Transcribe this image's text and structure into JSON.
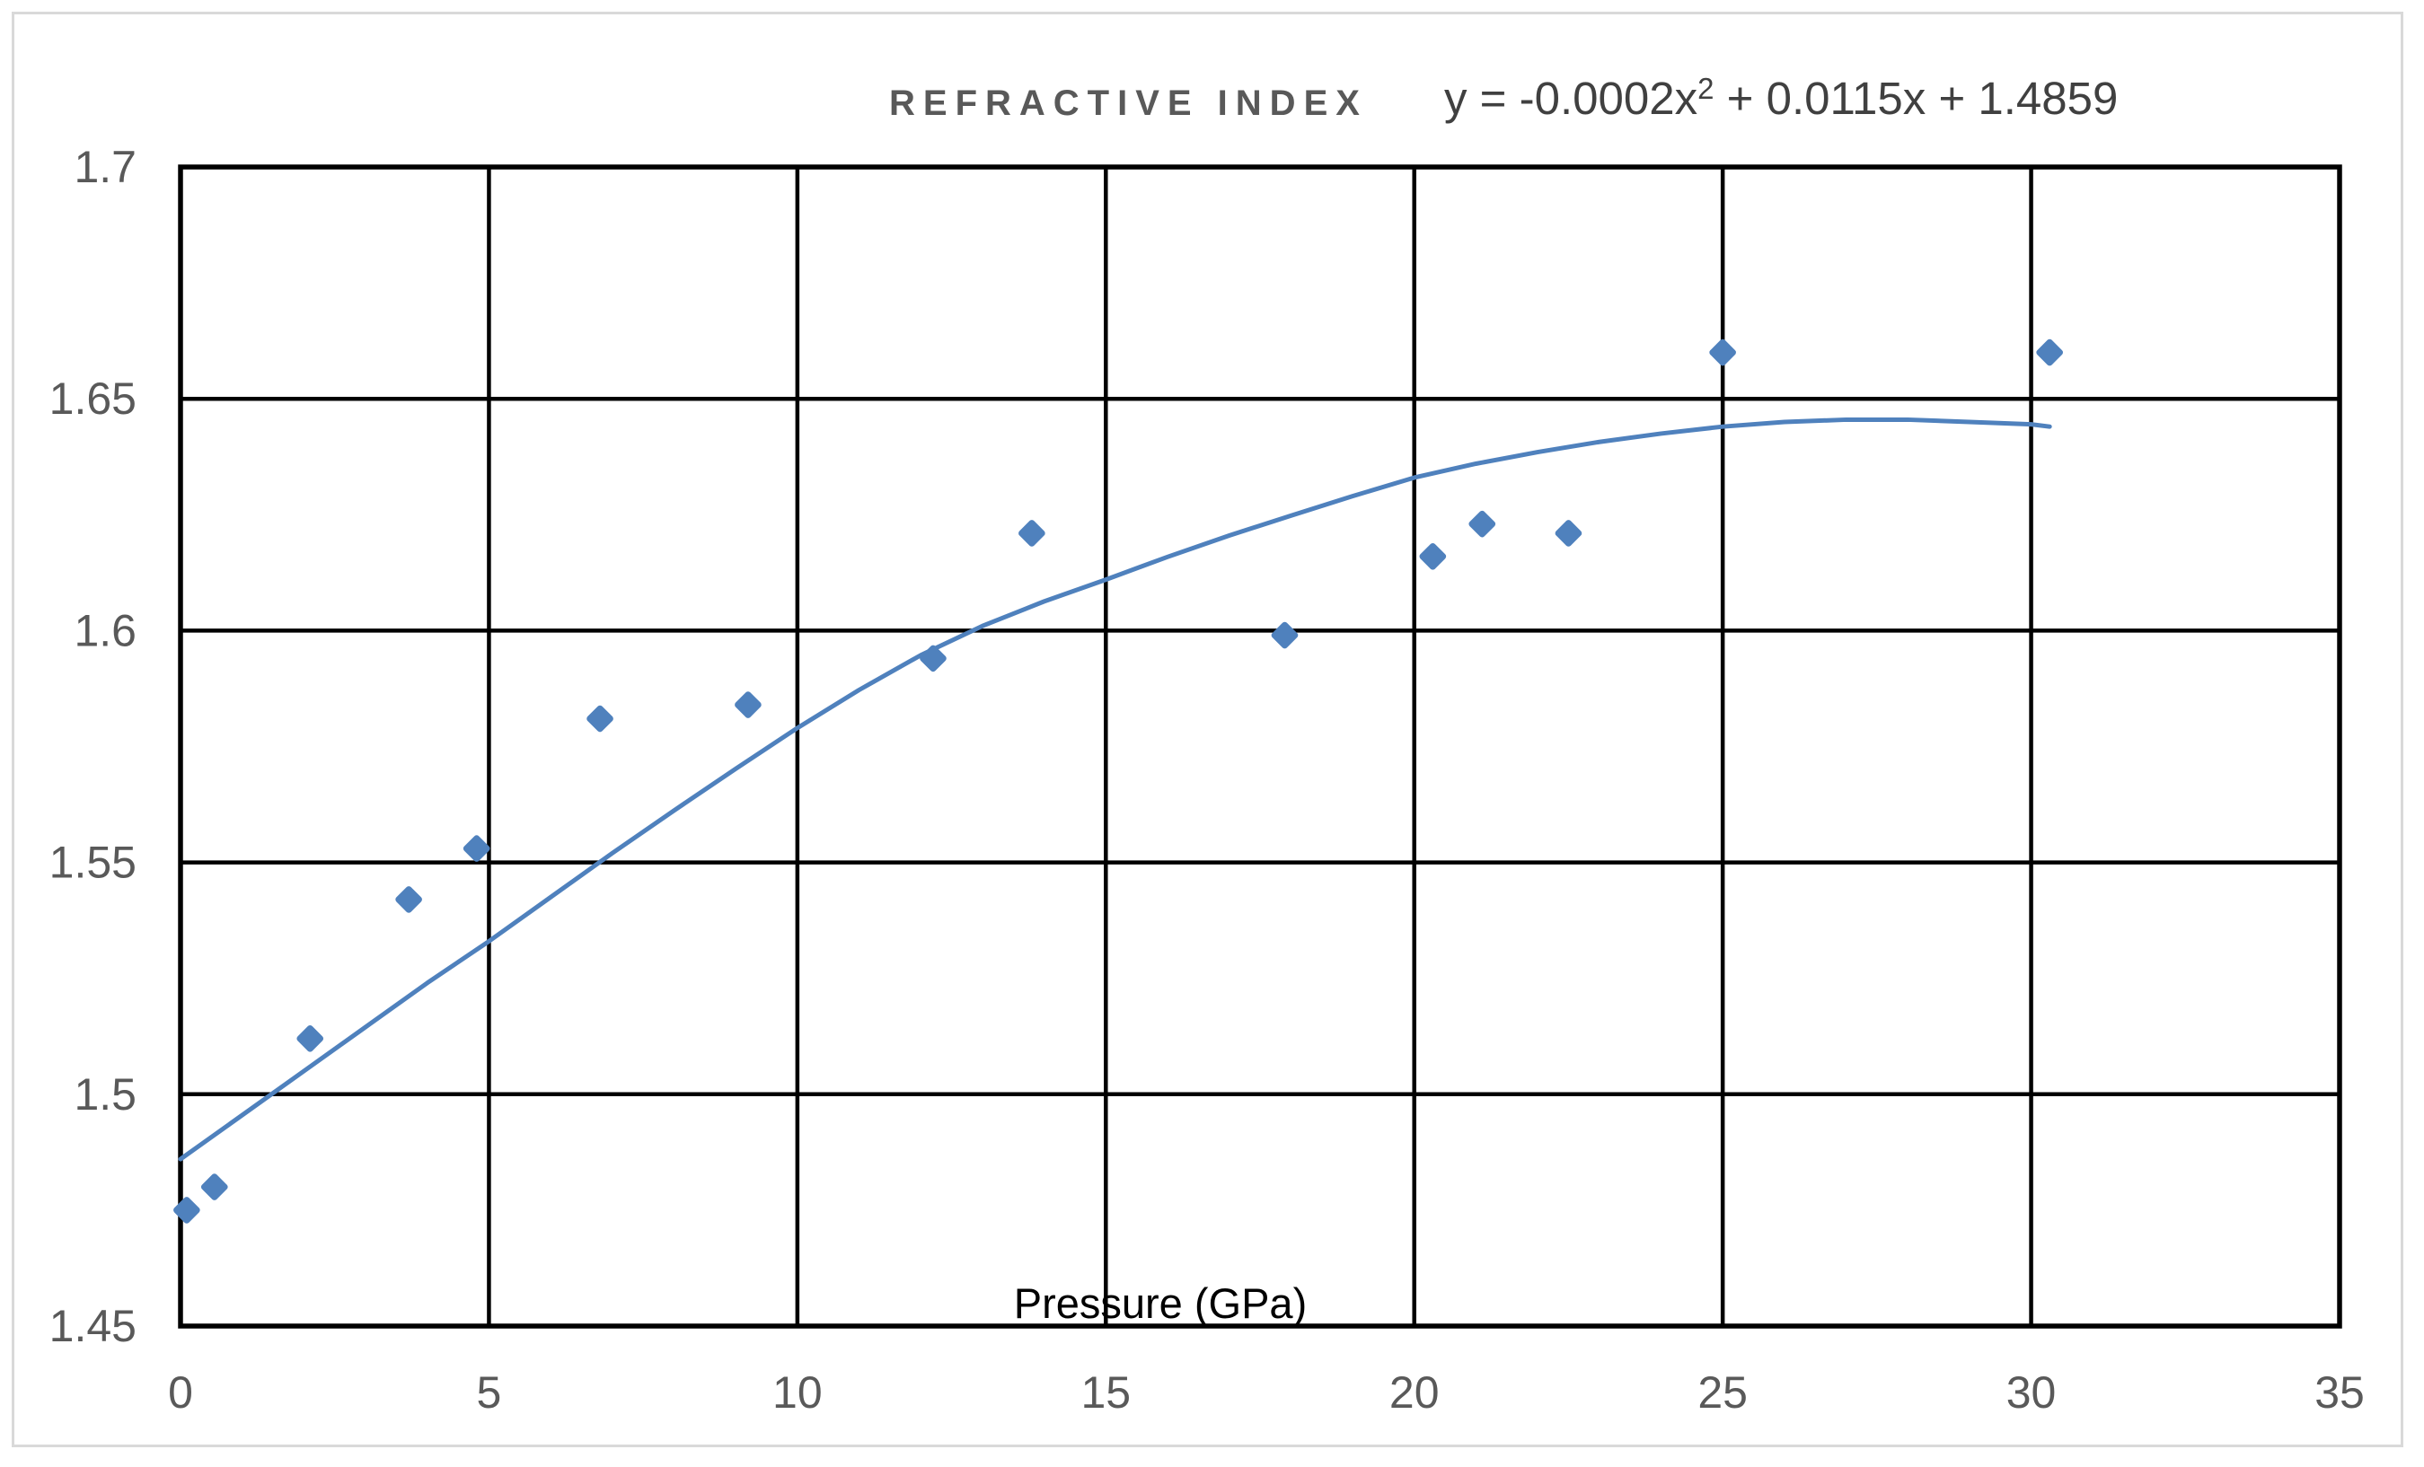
{
  "header": {
    "series_label": "REFRACTIVE INDEX",
    "equation": {
      "base": "y = -0.0002x",
      "sup": "2",
      "rest": " + 0.0115x + 1.4859"
    }
  },
  "colors": {
    "series": "#4F81BD",
    "gridline": "#000000",
    "plot_border": "#000000",
    "tick_labels": "#595959",
    "series_label_text": "#595959",
    "equation_text": "#404040",
    "axis_title_text": "#000000",
    "frame": "#D9D9D9",
    "background": "#FFFFFF"
  },
  "chart_data": {
    "type": "scatter",
    "title": "REFRACTIVE INDEX",
    "trendline_equation": "y = -0.0002x^2 + 0.0115x + 1.4859",
    "xlabel": "Pressure (GPa)",
    "ylabel": "",
    "xlim": [
      0,
      35
    ],
    "ylim": [
      1.45,
      1.7
    ],
    "x_ticks": [
      0,
      5,
      10,
      15,
      20,
      25,
      30,
      35
    ],
    "x_tick_labels": [
      "0",
      "5",
      "10",
      "15",
      "20",
      "25",
      "30",
      "35"
    ],
    "y_ticks": [
      1.45,
      1.5,
      1.55,
      1.6,
      1.65,
      1.7
    ],
    "y_tick_labels": [
      "1.45",
      "1.5",
      "1.55",
      "1.6",
      "1.65",
      "1.7"
    ],
    "grid": true,
    "legend": "none",
    "series": [
      {
        "name": "REFRACTIVE INDEX",
        "marker": "diamond",
        "color": "#4F81BD",
        "points": [
          [
            0.1,
            1.475
          ],
          [
            0.55,
            1.48
          ],
          [
            2.1,
            1.512
          ],
          [
            3.7,
            1.542
          ],
          [
            4.8,
            1.553
          ],
          [
            6.8,
            1.581
          ],
          [
            9.2,
            1.584
          ],
          [
            12.2,
            1.594
          ],
          [
            13.8,
            1.621
          ],
          [
            17.9,
            1.599
          ],
          [
            20.3,
            1.616
          ],
          [
            21.1,
            1.623
          ],
          [
            22.5,
            1.621
          ],
          [
            25,
            1.66
          ],
          [
            30.3,
            1.66
          ]
        ]
      }
    ],
    "trendline": {
      "type": "polynomial",
      "order": 2,
      "color": "#4F81BD",
      "points": [
        [
          0,
          1.486
        ],
        [
          1,
          1.4955
        ],
        [
          2,
          1.505
        ],
        [
          3,
          1.5145
        ],
        [
          4,
          1.524
        ],
        [
          5,
          1.533
        ],
        [
          6,
          1.5425
        ],
        [
          7,
          1.552
        ],
        [
          8,
          1.5612
        ],
        [
          9,
          1.5702
        ],
        [
          10,
          1.579
        ],
        [
          11,
          1.5872
        ],
        [
          12,
          1.5947
        ],
        [
          13,
          1.601
        ],
        [
          14,
          1.6063
        ],
        [
          15,
          1.611
        ],
        [
          16,
          1.6159
        ],
        [
          17,
          1.6205
        ],
        [
          18,
          1.6248
        ],
        [
          19,
          1.629
        ],
        [
          20,
          1.633
        ],
        [
          21,
          1.636
        ],
        [
          22,
          1.6385
        ],
        [
          23,
          1.6407
        ],
        [
          24,
          1.6425
        ],
        [
          25,
          1.644
        ],
        [
          26,
          1.645
        ],
        [
          27,
          1.6455
        ],
        [
          28,
          1.6455
        ],
        [
          29,
          1.645
        ],
        [
          30,
          1.6445
        ],
        [
          30.3,
          1.644
        ]
      ]
    }
  }
}
